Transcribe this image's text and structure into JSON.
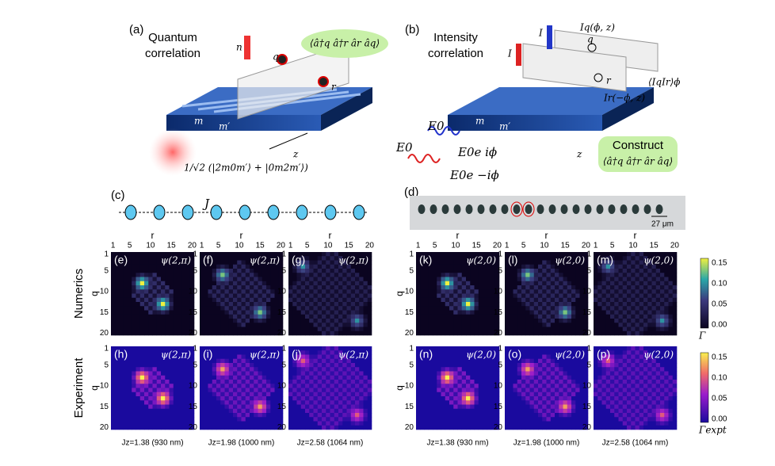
{
  "panel_a": {
    "label": "(a)",
    "title": [
      "Quantum",
      "correlation"
    ],
    "n": "n",
    "q": "q",
    "r": "r",
    "m": "m",
    "m2": "m′",
    "z": "z",
    "formula": "⟨â†q â†r âr âq⟩",
    "state": "1/√2 (|2m0m′⟩ + |0m2m′⟩)"
  },
  "panel_b": {
    "label": "(b)",
    "title": [
      "Intensity",
      "correlation"
    ],
    "i1": "I",
    "i2": "I",
    "iq": "Iq(ϕ, z)",
    "q": "q",
    "r": "r",
    "ir": "Ir(−ϕ, z)",
    "avg": "⟨IqIr⟩ϕ",
    "m": "m",
    "m2": "m′",
    "z": "z",
    "e1": "E0",
    "e2": "E0",
    "e3": "E0e iϕ",
    "e4": "E0e −iϕ",
    "construct": "Construct",
    "formula": "⟨â†q â†r âr âq⟩"
  },
  "panel_c": {
    "label": "(c)",
    "J": "J"
  },
  "panel_d": {
    "label": "(d)",
    "scale": "27 μm"
  },
  "heatmaps": {
    "ticks": [
      "1",
      "5",
      "10",
      "15",
      "20"
    ],
    "x_label": "r",
    "y_label": "q",
    "row_labels": [
      "Numerics",
      "Experiment"
    ],
    "panels": [
      {
        "label": "(e)",
        "tag": "ψ(2,π)"
      },
      {
        "label": "(f)",
        "tag": "ψ(2,π)"
      },
      {
        "label": "(g)",
        "tag": "ψ(2,π)"
      },
      {
        "label": "(k)",
        "tag": "ψ(2,0)"
      },
      {
        "label": "(l)",
        "tag": "ψ(2,0)"
      },
      {
        "label": "(m)",
        "tag": "ψ(2,0)"
      },
      {
        "label": "(h)",
        "tag": "ψ(2,π)"
      },
      {
        "label": "(i)",
        "tag": "ψ(2,π)"
      },
      {
        "label": "(j)",
        "tag": "ψ(2,π)"
      },
      {
        "label": "(n)",
        "tag": "ψ(2,0)"
      },
      {
        "label": "(o)",
        "tag": "ψ(2,0)"
      },
      {
        "label": "(p)",
        "tag": "ψ(2,0)"
      }
    ],
    "bottom_labels": [
      "Jz=1.38 (930 nm)",
      "Jz=1.98 (1000 nm)",
      "Jz=2.58 (1064 nm)",
      "Jz=1.38 (930 nm)",
      "Jz=1.98 (1000 nm)",
      "Jz=2.58 (1064 nm)"
    ],
    "colorbar_ticks": [
      "0.15",
      "0.10",
      "0.05",
      "0.00"
    ],
    "colorbar_labels": [
      "Γ",
      "Γexpt"
    ]
  }
}
